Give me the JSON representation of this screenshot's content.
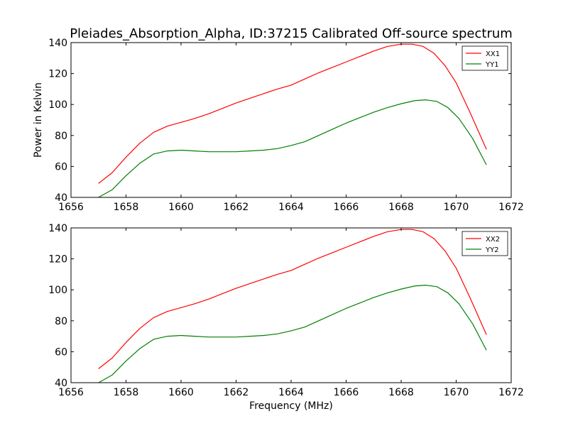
{
  "figure": {
    "title": "Pleiades_Absorption_Alpha, ID:37215 Calibrated Off-source spectrum"
  },
  "chart_data": [
    {
      "type": "line",
      "title": "Pleiades_Absorption_Alpha, ID:37215 Calibrated Off-source spectrum",
      "xlabel": "",
      "ylabel": "Power in Kelvin",
      "xlim": [
        1656,
        1672
      ],
      "ylim": [
        40,
        140
      ],
      "xticks": [
        1656,
        1658,
        1660,
        1662,
        1664,
        1666,
        1668,
        1670,
        1672
      ],
      "yticks": [
        40,
        60,
        80,
        100,
        120,
        140
      ],
      "legend": "top-right",
      "grid": false,
      "series": [
        {
          "name": "XX1",
          "color": "#ff0000",
          "x": [
            1657.0,
            1657.5,
            1658.0,
            1658.5,
            1659.0,
            1659.5,
            1660.0,
            1660.5,
            1661.0,
            1661.5,
            1662.0,
            1662.5,
            1663.0,
            1663.5,
            1664.0,
            1664.5,
            1665.0,
            1665.5,
            1666.0,
            1666.5,
            1667.0,
            1667.5,
            1668.0,
            1668.4,
            1668.8,
            1669.2,
            1669.6,
            1670.0,
            1670.5,
            1671.1
          ],
          "y": [
            49,
            56,
            66,
            75,
            82,
            86,
            88.5,
            91,
            94,
            97.5,
            101,
            104,
            107,
            110,
            112.5,
            116.5,
            120.5,
            124,
            127.5,
            131,
            134.5,
            137.5,
            139,
            139,
            137.5,
            133,
            125,
            114,
            95,
            71
          ]
        },
        {
          "name": "YY1",
          "color": "#008000",
          "x": [
            1657.0,
            1657.5,
            1658.0,
            1658.5,
            1659.0,
            1659.5,
            1660.0,
            1660.5,
            1661.0,
            1661.5,
            1662.0,
            1662.5,
            1663.0,
            1663.5,
            1664.0,
            1664.5,
            1665.0,
            1665.5,
            1666.0,
            1666.5,
            1667.0,
            1667.5,
            1668.0,
            1668.5,
            1668.9,
            1669.3,
            1669.7,
            1670.1,
            1670.6,
            1671.1
          ],
          "y": [
            40,
            45,
            54,
            62,
            68,
            70,
            70.5,
            70,
            69.5,
            69.5,
            69.5,
            70,
            70.5,
            71.5,
            73.5,
            76,
            80,
            84,
            88,
            91.5,
            95,
            98,
            100.5,
            102.5,
            103,
            102,
            98,
            91,
            78,
            61
          ]
        }
      ]
    },
    {
      "type": "line",
      "title": "",
      "xlabel": "Frequency (MHz)",
      "ylabel": "",
      "xlim": [
        1656,
        1672
      ],
      "ylim": [
        40,
        140
      ],
      "xticks": [
        1656,
        1658,
        1660,
        1662,
        1664,
        1666,
        1668,
        1670,
        1672
      ],
      "yticks": [
        40,
        60,
        80,
        100,
        120,
        140
      ],
      "legend": "top-right",
      "grid": false,
      "series": [
        {
          "name": "XX2",
          "color": "#ff0000",
          "x": [
            1657.0,
            1657.5,
            1658.0,
            1658.5,
            1659.0,
            1659.5,
            1660.0,
            1660.5,
            1661.0,
            1661.5,
            1662.0,
            1662.5,
            1663.0,
            1663.5,
            1664.0,
            1664.5,
            1665.0,
            1665.5,
            1666.0,
            1666.5,
            1667.0,
            1667.5,
            1668.0,
            1668.4,
            1668.8,
            1669.2,
            1669.6,
            1670.0,
            1670.5,
            1671.1
          ],
          "y": [
            49,
            56,
            66,
            75,
            82,
            86,
            88.5,
            91,
            94,
            97.5,
            101,
            104,
            107,
            110,
            112.5,
            116.5,
            120.5,
            124,
            127.5,
            131,
            134.5,
            137.5,
            139,
            139,
            137.5,
            133,
            125,
            114,
            95,
            71
          ]
        },
        {
          "name": "YY2",
          "color": "#008000",
          "x": [
            1657.0,
            1657.5,
            1658.0,
            1658.5,
            1659.0,
            1659.5,
            1660.0,
            1660.5,
            1661.0,
            1661.5,
            1662.0,
            1662.5,
            1663.0,
            1663.5,
            1664.0,
            1664.5,
            1665.0,
            1665.5,
            1666.0,
            1666.5,
            1667.0,
            1667.5,
            1668.0,
            1668.5,
            1668.9,
            1669.3,
            1669.7,
            1670.1,
            1670.6,
            1671.1
          ],
          "y": [
            40,
            45,
            54,
            62,
            68,
            70,
            70.5,
            70,
            69.5,
            69.5,
            69.5,
            70,
            70.5,
            71.5,
            73.5,
            76,
            80,
            84,
            88,
            91.5,
            95,
            98,
            100.5,
            102.5,
            103,
            102,
            98,
            91,
            78,
            61
          ]
        }
      ]
    }
  ]
}
